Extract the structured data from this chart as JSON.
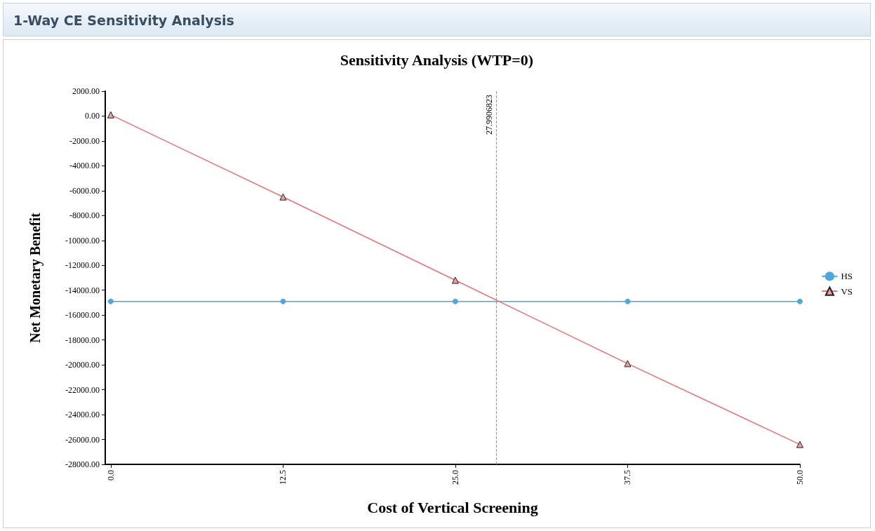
{
  "chart_data": {
    "type": "line",
    "title": "1-Way CE Sensitivity Analysis",
    "subtitle": "Sensitivity Analysis (WTP=0)",
    "xlabel": "Cost of Vertical Screening",
    "ylabel": "Net Monetary Benefit",
    "x": [
      0,
      12.5,
      25,
      37.5,
      50
    ],
    "series": [
      {
        "name": "HS",
        "color": "#4ea6dc",
        "marker": "circle",
        "values": [
          -14900,
          -14900,
          -14900,
          -14900,
          -14900
        ]
      },
      {
        "name": "VS",
        "color": "#f06f73",
        "marker": "triangle",
        "values": [
          100,
          -6500,
          -13200,
          -19900,
          -26400
        ]
      }
    ],
    "xlim": [
      -0.4,
      50
    ],
    "xticks": [
      {
        "value": 0,
        "label": "0.0"
      },
      {
        "value": 12.5,
        "label": "12.5"
      },
      {
        "value": 25,
        "label": "25.0"
      },
      {
        "value": 37.5,
        "label": "37.5"
      },
      {
        "value": 50,
        "label": "50.0"
      }
    ],
    "ylim": [
      -28000,
      2000
    ],
    "yticks": [
      {
        "value": 2000,
        "label": "2000.00"
      },
      {
        "value": 0,
        "label": "0.00"
      },
      {
        "value": -2000,
        "label": "-2000.00"
      },
      {
        "value": -4000,
        "label": "-4000.00"
      },
      {
        "value": -6000,
        "label": "-6000.00"
      },
      {
        "value": -8000,
        "label": "-8000.00"
      },
      {
        "value": -10000,
        "label": "-10000.00"
      },
      {
        "value": -12000,
        "label": "-12000.00"
      },
      {
        "value": -14000,
        "label": "-14000.00"
      },
      {
        "value": -16000,
        "label": "-16000.00"
      },
      {
        "value": -18000,
        "label": "-18000.00"
      },
      {
        "value": -20000,
        "label": "-20000.00"
      },
      {
        "value": -22000,
        "label": "-22000.00"
      },
      {
        "value": -24000,
        "label": "-24000.00"
      },
      {
        "value": -26000,
        "label": "-26000.00"
      },
      {
        "value": -28000,
        "label": "-28000.00"
      }
    ],
    "ref_lines": [
      {
        "axis": "x",
        "value": 27.9906823,
        "label": "27.9906823",
        "color": "#999999",
        "line_style": "dashed"
      }
    ],
    "grid": false,
    "legend": "right",
    "line_style": "solid"
  }
}
